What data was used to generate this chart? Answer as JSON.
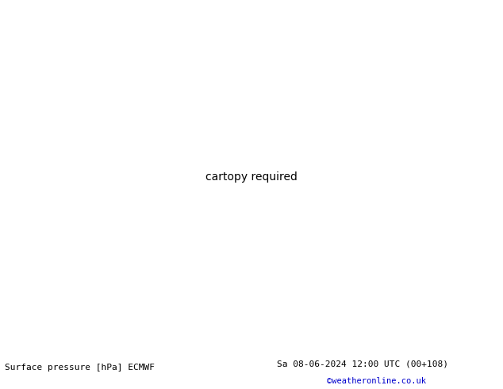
{
  "title_left": "Surface pressure [hPa] ECMWF",
  "title_right": "Sa 08-06-2024 12:00 UTC (00+108)",
  "credit": "©weatheronline.co.uk",
  "land_color": "#c8e8a0",
  "sea_color": "#d0d8e8",
  "mountain_color": "#b8b8b8",
  "coast_color": "#404040",
  "border_color": "#808080",
  "bottom_bar_color": "#ffffff",
  "title_color": "#000000",
  "credit_color": "#0000cc",
  "red_isobar_color": "#dd0000",
  "blue_isobar_color": "#0000cc",
  "black_isobar_color": "#000000",
  "figsize": [
    6.34,
    4.9
  ],
  "dpi": 100,
  "lon_min": -28,
  "lon_max": 48,
  "lat_min": 27,
  "lat_max": 72
}
